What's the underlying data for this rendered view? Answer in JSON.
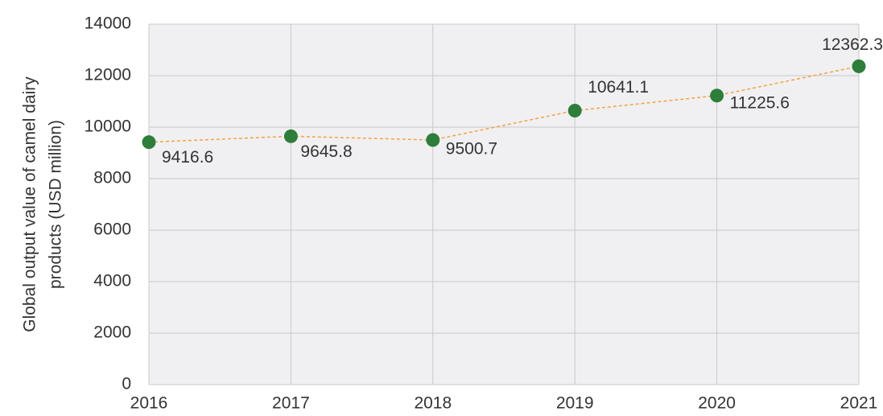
{
  "chart_data": {
    "type": "line",
    "ylabel": [
      "Global output value of camel dairy",
      "products (USD million)"
    ],
    "x": [
      2016,
      2017,
      2018,
      2019,
      2020,
      2021
    ],
    "series": [
      {
        "color": "#f5a142",
        "marker_color": "#2e7d3a",
        "values": [
          9416.6,
          9645.8,
          9500.7,
          10641.1,
          11225.6,
          12362.3
        ]
      }
    ],
    "xlim": [
      2016,
      2021
    ],
    "xticks": [
      2016,
      2017,
      2018,
      2019,
      2020,
      2021
    ],
    "ylim": [
      0,
      14000
    ],
    "yticks": [
      0,
      2000,
      4000,
      6000,
      8000,
      10000,
      12000,
      14000
    ],
    "grid": true
  }
}
